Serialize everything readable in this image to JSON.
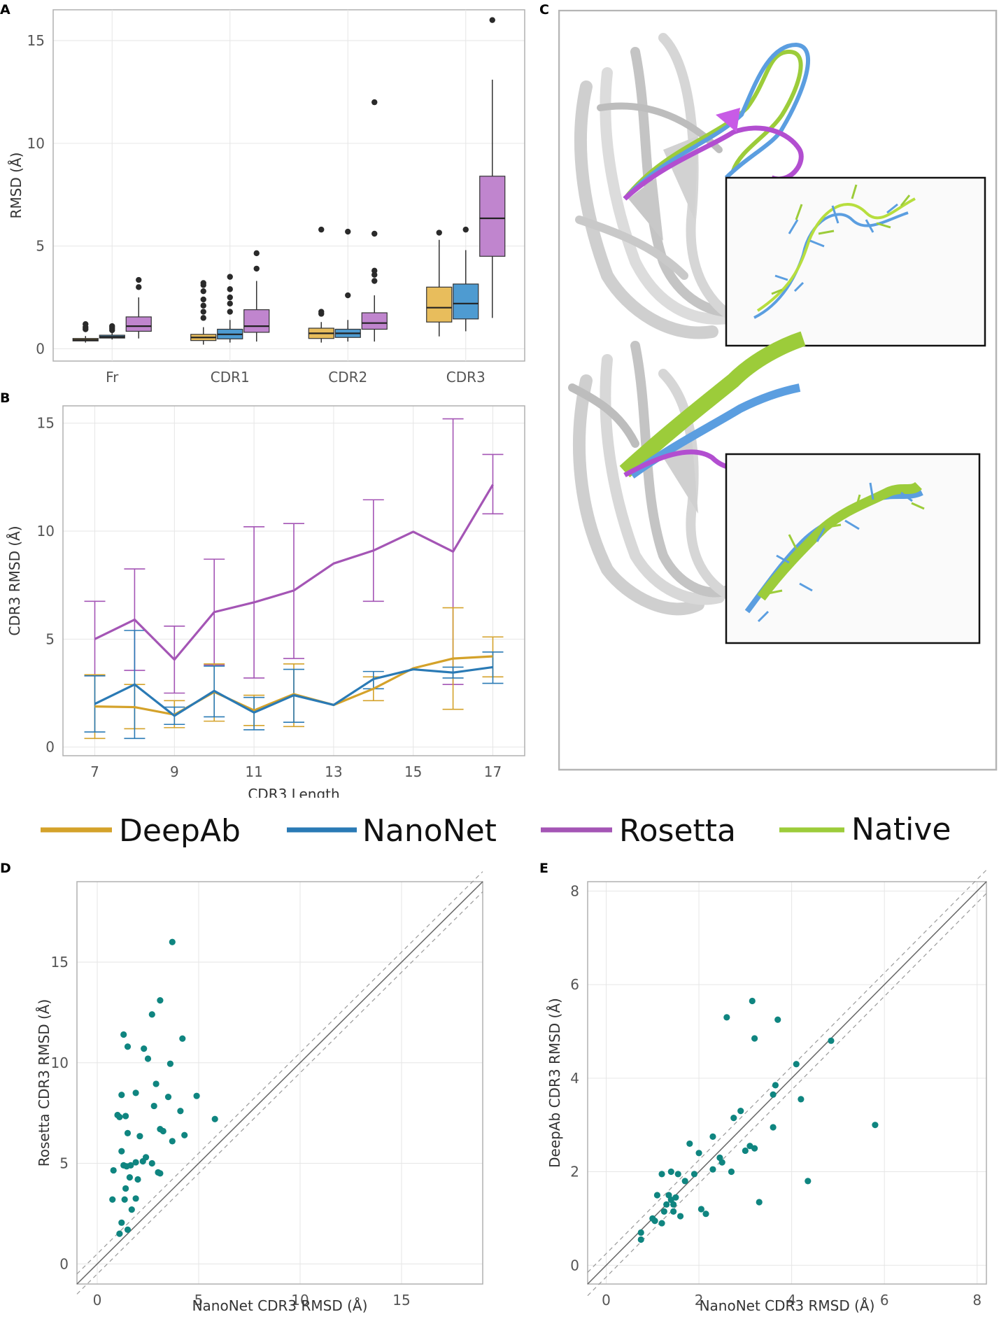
{
  "legend": {
    "items": [
      {
        "name": "DeepAb",
        "color": "#d4a22a"
      },
      {
        "name": "NanoNet",
        "color": "#2a7ab5"
      },
      {
        "name": "Rosetta",
        "color": "#a455b5"
      },
      {
        "name": "Native",
        "color": "#9ccc3a"
      }
    ]
  },
  "chart_data": [
    {
      "panel": "A",
      "type": "box",
      "title": "",
      "xlabel": "",
      "ylabel": "RMSD (Å)",
      "ylim": [
        -0.6,
        16.5
      ],
      "yticks": [
        0,
        5,
        10,
        15
      ],
      "categories": [
        "Fr",
        "CDR1",
        "CDR2",
        "CDR3"
      ],
      "series": [
        {
          "name": "DeepAb",
          "color": "#e8bd5c",
          "boxes": [
            {
              "whisker_low": 0.3,
              "q1": 0.38,
              "median": 0.43,
              "q3": 0.5,
              "whisker_high": 0.62,
              "outliers": [
                0.95,
                1.05,
                1.2
              ]
            },
            {
              "whisker_low": 0.2,
              "q1": 0.4,
              "median": 0.55,
              "q3": 0.7,
              "whisker_high": 1.05,
              "outliers": [
                1.5,
                1.8,
                2.1,
                2.4,
                2.8,
                3.1,
                3.2
              ]
            },
            {
              "whisker_low": 0.3,
              "q1": 0.5,
              "median": 0.75,
              "q3": 1.0,
              "whisker_high": 1.3,
              "outliers": [
                1.7,
                1.8,
                5.8
              ]
            },
            {
              "whisker_low": 0.6,
              "q1": 1.3,
              "median": 2.0,
              "q3": 3.0,
              "whisker_high": 5.3,
              "outliers": [
                5.65
              ]
            }
          ]
        },
        {
          "name": "NanoNet",
          "color": "#4e9bd1",
          "boxes": [
            {
              "whisker_low": 0.45,
              "q1": 0.52,
              "median": 0.58,
              "q3": 0.66,
              "whisker_high": 0.8,
              "outliers": [
                0.9,
                1.0,
                1.1
              ]
            },
            {
              "whisker_low": 0.3,
              "q1": 0.48,
              "median": 0.7,
              "q3": 0.95,
              "whisker_high": 1.4,
              "outliers": [
                1.8,
                2.2,
                2.5,
                2.9,
                3.5
              ]
            },
            {
              "whisker_low": 0.35,
              "q1": 0.55,
              "median": 0.75,
              "q3": 0.95,
              "whisker_high": 1.4,
              "outliers": [
                2.6,
                5.7
              ]
            },
            {
              "whisker_low": 0.85,
              "q1": 1.45,
              "median": 2.2,
              "q3": 3.15,
              "whisker_high": 4.8,
              "outliers": [
                5.8
              ]
            }
          ]
        },
        {
          "name": "Rosetta",
          "color": "#c085ce",
          "boxes": [
            {
              "whisker_low": 0.5,
              "q1": 0.85,
              "median": 1.1,
              "q3": 1.55,
              "whisker_high": 2.5,
              "outliers": [
                3.0,
                3.35
              ]
            },
            {
              "whisker_low": 0.35,
              "q1": 0.8,
              "median": 1.1,
              "q3": 1.9,
              "whisker_high": 3.3,
              "outliers": [
                3.9,
                4.65
              ]
            },
            {
              "whisker_low": 0.35,
              "q1": 0.95,
              "median": 1.25,
              "q3": 1.75,
              "whisker_high": 2.6,
              "outliers": [
                3.3,
                3.6,
                3.8,
                5.6,
                12.0
              ]
            },
            {
              "whisker_low": 1.5,
              "q1": 4.5,
              "median": 6.35,
              "q3": 8.4,
              "whisker_high": 13.1,
              "outliers": [
                16.0
              ]
            }
          ]
        }
      ]
    },
    {
      "panel": "B",
      "type": "line",
      "title": "",
      "xlabel": "CDR3 Length",
      "ylabel": "CDR3 RMSD (Å)",
      "xlim": [
        6.2,
        17.8
      ],
      "ylim": [
        -0.4,
        15.8
      ],
      "xticks": [
        7,
        9,
        11,
        13,
        15,
        17
      ],
      "yticks": [
        0,
        5,
        10,
        15
      ],
      "x": [
        7,
        8,
        9,
        10,
        11,
        12,
        13,
        14,
        15,
        16,
        17
      ],
      "series": [
        {
          "name": "Rosetta",
          "color": "#a455b5",
          "values": [
            5.0,
            5.9,
            4.05,
            6.25,
            6.7,
            7.25,
            8.5,
            9.1,
            9.97,
            9.05,
            12.15
          ],
          "err_low": [
            3.3,
            3.55,
            2.5,
            3.8,
            3.2,
            4.1,
            null,
            6.75,
            null,
            2.9,
            10.8
          ],
          "err_high": [
            6.75,
            8.25,
            5.6,
            8.7,
            10.2,
            10.35,
            null,
            11.45,
            null,
            15.2,
            13.55
          ]
        },
        {
          "name": "DeepAb",
          "color": "#d4a22a",
          "values": [
            1.88,
            1.85,
            1.5,
            2.55,
            1.7,
            2.45,
            1.95,
            2.7,
            3.65,
            4.1,
            4.2
          ],
          "err_low": [
            0.4,
            0.85,
            0.9,
            1.2,
            1.0,
            0.95,
            null,
            2.15,
            null,
            1.75,
            3.25
          ],
          "err_high": [
            3.35,
            2.9,
            2.15,
            3.85,
            2.4,
            3.85,
            null,
            3.25,
            null,
            6.45,
            5.1
          ]
        },
        {
          "name": "NanoNet",
          "color": "#2a7ab5",
          "values": [
            2.0,
            2.9,
            1.45,
            2.6,
            1.6,
            2.4,
            1.95,
            3.15,
            3.6,
            3.45,
            3.7
          ],
          "err_low": [
            0.7,
            0.4,
            1.05,
            1.4,
            0.8,
            1.15,
            null,
            2.7,
            null,
            3.2,
            2.95
          ],
          "err_high": [
            3.3,
            5.4,
            1.85,
            3.75,
            2.3,
            3.6,
            null,
            3.5,
            null,
            3.7,
            4.4
          ]
        }
      ]
    },
    {
      "panel": "D",
      "type": "scatter",
      "title": "",
      "xlabel": "NanoNet CDR3 RMSD (Å)",
      "ylabel": "Rosetta CDR3 RMSD (Å)",
      "xlim": [
        -1,
        19
      ],
      "ylim": [
        -1,
        19
      ],
      "xticks": [
        0,
        5,
        10,
        15
      ],
      "yticks": [
        0,
        5,
        10,
        15
      ],
      "color": "#0f8580",
      "points": [
        [
          3.7,
          16.0
        ],
        [
          3.1,
          13.1
        ],
        [
          2.7,
          12.4
        ],
        [
          1.3,
          11.4
        ],
        [
          4.2,
          11.2
        ],
        [
          1.5,
          10.8
        ],
        [
          2.3,
          10.7
        ],
        [
          2.5,
          10.2
        ],
        [
          3.6,
          9.95
        ],
        [
          2.9,
          8.95
        ],
        [
          1.2,
          8.4
        ],
        [
          1.9,
          8.5
        ],
        [
          3.5,
          8.3
        ],
        [
          4.9,
          8.35
        ],
        [
          2.8,
          7.85
        ],
        [
          4.1,
          7.6
        ],
        [
          1.0,
          7.4
        ],
        [
          1.1,
          7.3
        ],
        [
          1.4,
          7.35
        ],
        [
          5.8,
          7.2
        ],
        [
          3.1,
          6.7
        ],
        [
          3.25,
          6.6
        ],
        [
          1.5,
          6.5
        ],
        [
          2.1,
          6.35
        ],
        [
          4.3,
          6.4
        ],
        [
          3.7,
          6.1
        ],
        [
          0.8,
          4.65
        ],
        [
          1.2,
          5.6
        ],
        [
          2.4,
          5.3
        ],
        [
          2.25,
          5.1
        ],
        [
          1.3,
          4.9
        ],
        [
          1.45,
          4.85
        ],
        [
          1.65,
          4.9
        ],
        [
          2.7,
          5.0
        ],
        [
          1.9,
          5.05
        ],
        [
          3.0,
          4.55
        ],
        [
          3.1,
          4.5
        ],
        [
          1.6,
          4.3
        ],
        [
          2.0,
          4.2
        ],
        [
          1.4,
          3.75
        ],
        [
          0.75,
          3.2
        ],
        [
          1.35,
          3.2
        ],
        [
          1.9,
          3.25
        ],
        [
          1.7,
          2.7
        ],
        [
          1.2,
          2.05
        ],
        [
          1.5,
          1.7
        ],
        [
          1.1,
          1.5
        ]
      ]
    },
    {
      "panel": "E",
      "type": "scatter",
      "title": "",
      "xlabel": "NanoNet CDR3 RMSD (Å)",
      "ylabel": "DeepAb CDR3 RMSD (Å)",
      "xlim": [
        -0.4,
        8.2
      ],
      "ylim": [
        -0.4,
        8.2
      ],
      "xticks": [
        0,
        2,
        4,
        6,
        8
      ],
      "yticks": [
        0,
        2,
        4,
        6,
        8
      ],
      "color": "#0f8580",
      "points": [
        [
          3.15,
          5.65
        ],
        [
          2.6,
          5.3
        ],
        [
          3.7,
          5.25
        ],
        [
          3.2,
          4.85
        ],
        [
          4.85,
          4.8
        ],
        [
          4.1,
          4.3
        ],
        [
          3.65,
          3.85
        ],
        [
          3.6,
          3.65
        ],
        [
          4.2,
          3.55
        ],
        [
          2.9,
          3.3
        ],
        [
          2.75,
          3.15
        ],
        [
          5.8,
          3.0
        ],
        [
          3.6,
          2.95
        ],
        [
          2.3,
          2.75
        ],
        [
          1.8,
          2.6
        ],
        [
          3.1,
          2.55
        ],
        [
          3.0,
          2.45
        ],
        [
          3.2,
          2.5
        ],
        [
          2.0,
          2.4
        ],
        [
          2.45,
          2.3
        ],
        [
          2.5,
          2.2
        ],
        [
          2.7,
          2.0
        ],
        [
          2.3,
          2.05
        ],
        [
          1.9,
          1.95
        ],
        [
          1.2,
          1.95
        ],
        [
          1.4,
          2.0
        ],
        [
          1.55,
          1.95
        ],
        [
          1.7,
          1.8
        ],
        [
          4.35,
          1.8
        ],
        [
          1.1,
          1.5
        ],
        [
          1.35,
          1.5
        ],
        [
          1.4,
          1.4
        ],
        [
          1.5,
          1.45
        ],
        [
          1.3,
          1.3
        ],
        [
          1.45,
          1.3
        ],
        [
          1.6,
          1.05
        ],
        [
          1.45,
          1.15
        ],
        [
          3.3,
          1.35
        ],
        [
          2.05,
          1.2
        ],
        [
          2.15,
          1.1
        ],
        [
          1.25,
          1.15
        ],
        [
          1.0,
          1.0
        ],
        [
          1.2,
          0.9
        ],
        [
          1.05,
          0.95
        ],
        [
          0.75,
          0.7
        ],
        [
          0.75,
          0.55
        ]
      ]
    }
  ]
}
